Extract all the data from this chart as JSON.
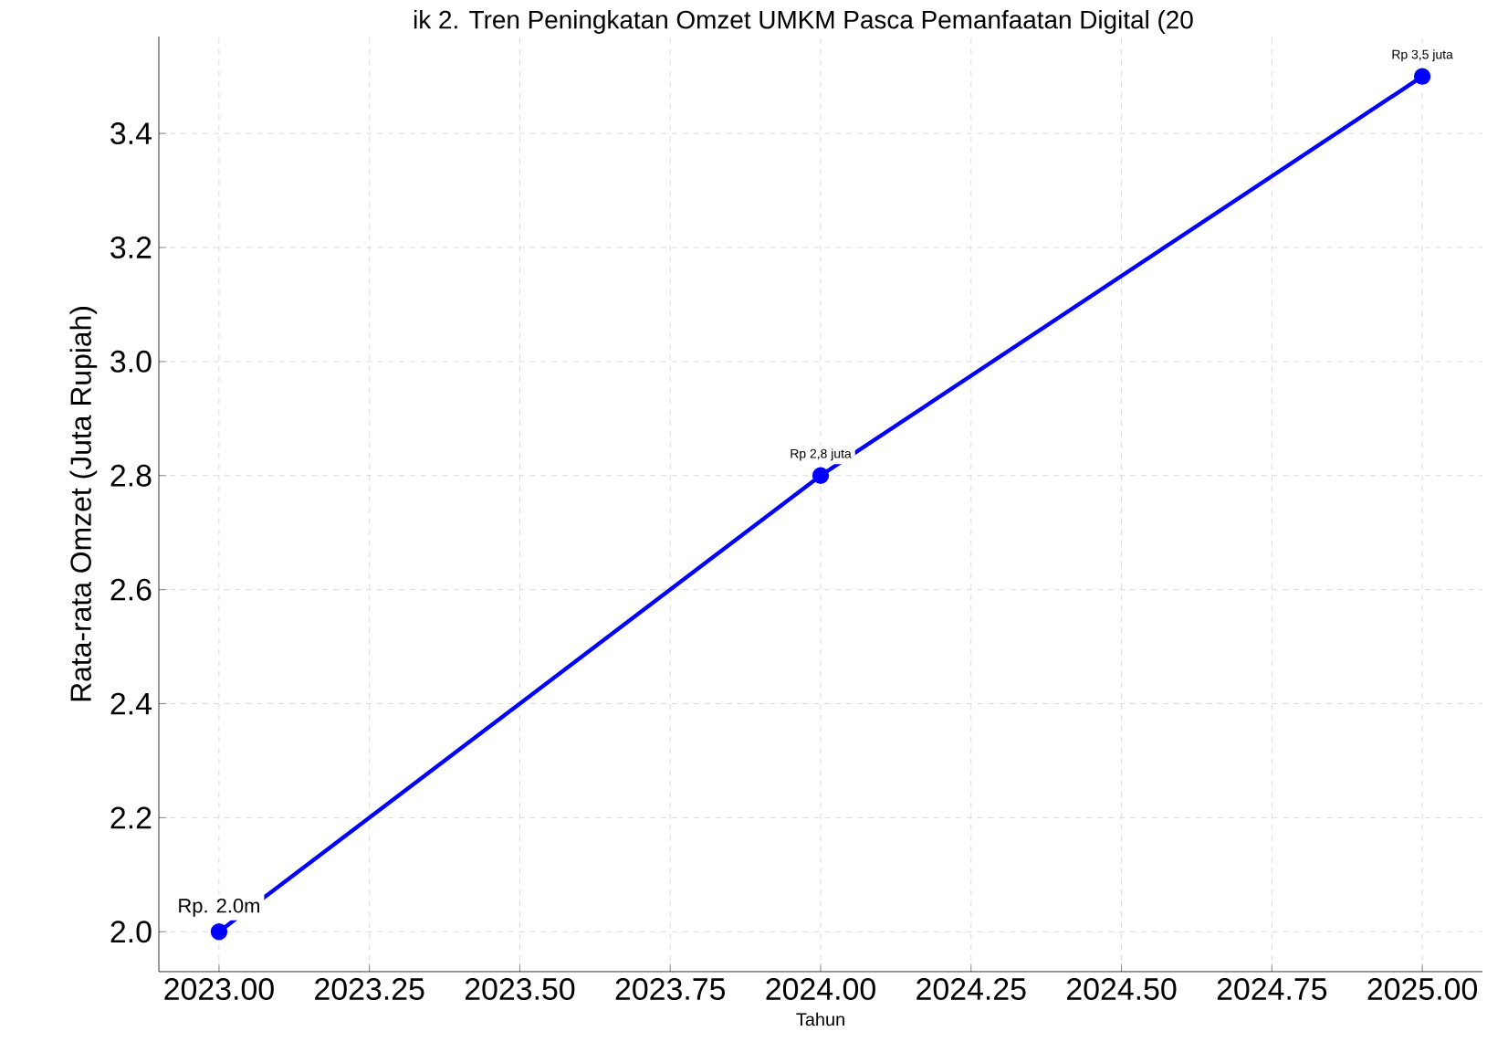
{
  "chart_data": {
    "type": "line",
    "title": "ik 2. Tren Peningkatan Omzet UMKM Pasca Pemanfaatan Digital (20",
    "xlabel": "Tahun",
    "ylabel": "Rata-rata Omzet (Juta Rupiah)",
    "x": [
      2023,
      2024,
      2025
    ],
    "series": [
      {
        "color": "#0000ff",
        "values": [
          2.0,
          2.8,
          3.5
        ]
      }
    ],
    "annotations": [
      {
        "text": "Rp. 2.0m",
        "x": 2023,
        "y": 2.0
      },
      {
        "text": "Rp 2,8 juta",
        "x": 2024,
        "y": 2.8
      },
      {
        "text": "Rp 3,5 juta",
        "x": 2025,
        "y": 3.5
      }
    ],
    "xlim": [
      2022.9,
      2025.1
    ],
    "ylim": [
      1.93,
      3.57
    ],
    "xticks": [
      {
        "value": 2023,
        "label": "2023.00"
      },
      {
        "value": 2023.25,
        "label": "2023.25"
      },
      {
        "value": 2023.5,
        "label": "2023.50"
      },
      {
        "value": 2023.75,
        "label": "2023.75"
      },
      {
        "value": 2024,
        "label": "2024.00"
      },
      {
        "value": 2024.25,
        "label": "2024.25"
      },
      {
        "value": 2024.5,
        "label": "2024.50"
      },
      {
        "value": 2024.75,
        "label": "2024.75"
      },
      {
        "value": 2025,
        "label": "2025.00"
      }
    ],
    "yticks": [
      {
        "value": 2.0,
        "label": "2.0"
      },
      {
        "value": 2.2,
        "label": "2.2"
      },
      {
        "value": 2.4,
        "label": "2.4"
      },
      {
        "value": 2.6,
        "label": "2.6"
      },
      {
        "value": 2.8,
        "label": "2.8"
      },
      {
        "value": 3.0,
        "label": "3.0"
      },
      {
        "value": 3.2,
        "label": "3.2"
      },
      {
        "value": 3.4,
        "label": "3.4"
      }
    ],
    "grid": true,
    "marker": "circle",
    "line_style": "solid"
  }
}
